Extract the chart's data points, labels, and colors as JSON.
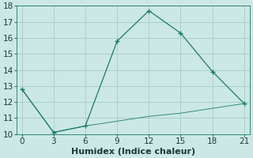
{
  "xlabel": "Humidex (Indice chaleur)",
  "line1_x": [
    0,
    3,
    6,
    9,
    12,
    15,
    18,
    21
  ],
  "line1_y": [
    12.8,
    10.1,
    10.5,
    15.8,
    17.7,
    16.3,
    13.9,
    11.9
  ],
  "line2_x": [
    0,
    3,
    6,
    9,
    12,
    15,
    18,
    21
  ],
  "line2_y": [
    12.8,
    10.1,
    10.5,
    10.8,
    11.1,
    11.3,
    11.6,
    11.9
  ],
  "line_color": "#1a7a6e",
  "bg_color": "#cce8e4",
  "grid_color": "#aacfcb",
  "ylim": [
    10,
    18
  ],
  "xlim": [
    -0.5,
    21.5
  ],
  "yticks": [
    10,
    11,
    12,
    13,
    14,
    15,
    16,
    17,
    18
  ],
  "xticks": [
    0,
    3,
    6,
    9,
    12,
    15,
    18,
    21
  ],
  "tick_fontsize": 7.5,
  "xlabel_fontsize": 8
}
